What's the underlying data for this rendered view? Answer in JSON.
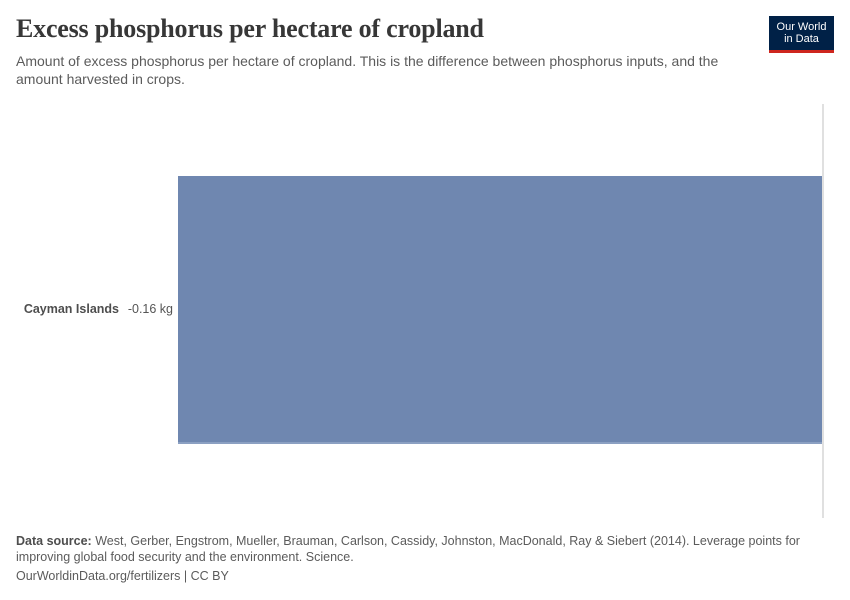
{
  "header": {
    "title": "Excess phosphorus per hectare of cropland",
    "subtitle": "Amount of excess phosphorus per hectare of cropland. This is the difference between phosphorus inputs, and the amount harvested in crops."
  },
  "logo": {
    "line1": "Our World",
    "line2": "in Data",
    "bg_color": "#002147",
    "accent_color": "#ce261e"
  },
  "chart_data": {
    "type": "bar",
    "orientation": "horizontal",
    "title": "Excess phosphorus per hectare of cropland",
    "subtitle": "Amount of excess phosphorus per hectare of cropland. This is the difference between phosphorus inputs, and the amount harvested in crops.",
    "categories": [
      "Cayman Islands"
    ],
    "values": [
      -0.16
    ],
    "value_labels": [
      "-0.16 kg"
    ],
    "unit": "kg",
    "xlabel": "",
    "ylabel": "",
    "xlim": [
      -0.16,
      0
    ],
    "grid": false,
    "zero_line": true,
    "bar_color": "#6f87b0",
    "legend": null
  },
  "footer": {
    "source_label": "Data source:",
    "source_text": "West, Gerber, Engstrom, Mueller, Brauman, Carlson, Cassidy, Johnston, MacDonald, Ray & Siebert (2014). Leverage points for improving global food security and the environment. Science.",
    "link_text": "OurWorldinData.org/fertilizers",
    "separator": "|",
    "license": "CC BY"
  }
}
